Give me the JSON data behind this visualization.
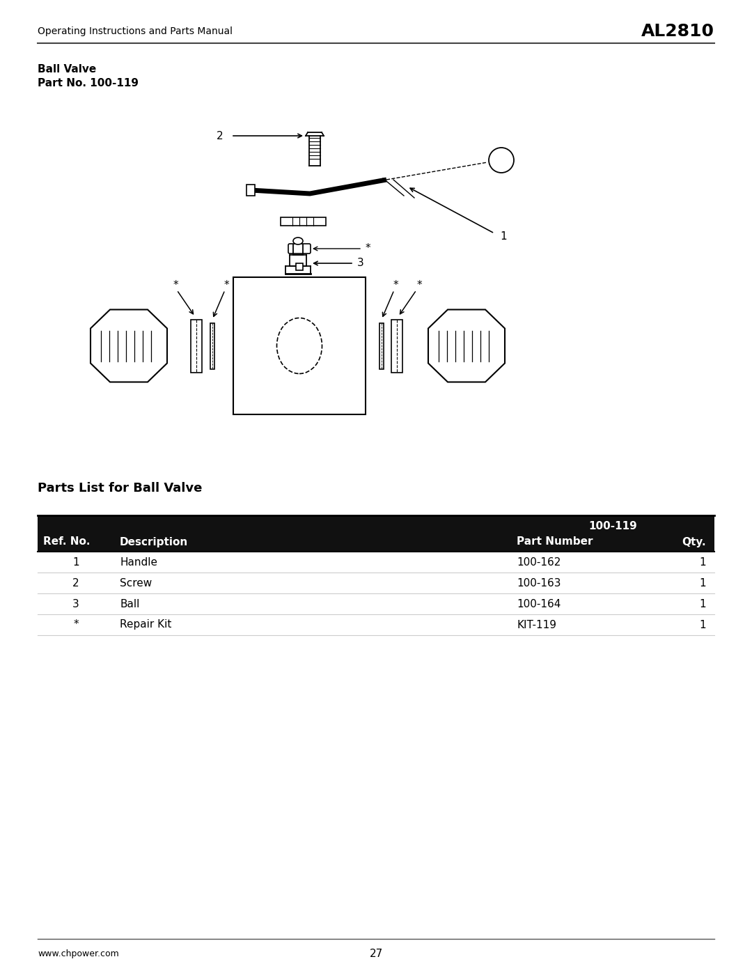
{
  "page_title_left": "Operating Instructions and Parts Manual",
  "page_title_right": "AL2810",
  "section_title_line1": "Ball Valve",
  "section_title_line2": "Part No. 100-119",
  "parts_list_title": "Parts List for Ball Valve",
  "table_header_model": "100-119",
  "table_col1": "Ref. No.",
  "table_col2": "Description",
  "table_col3": "Part Number",
  "table_col4": "Qty.",
  "table_rows": [
    [
      "1",
      "Handle",
      "100-162",
      "1"
    ],
    [
      "2",
      "Screw",
      "100-163",
      "1"
    ],
    [
      "3",
      "Ball",
      "100-164",
      "1"
    ],
    [
      "*",
      "Repair Kit",
      "KIT-119",
      "1"
    ]
  ],
  "footer_left": "www.chpower.com",
  "footer_center": "27",
  "bg_color": "#ffffff",
  "text_color": "#000000",
  "table_header_bg": "#111111",
  "table_header_text": "#ffffff",
  "table_sep_color": "#cccccc"
}
